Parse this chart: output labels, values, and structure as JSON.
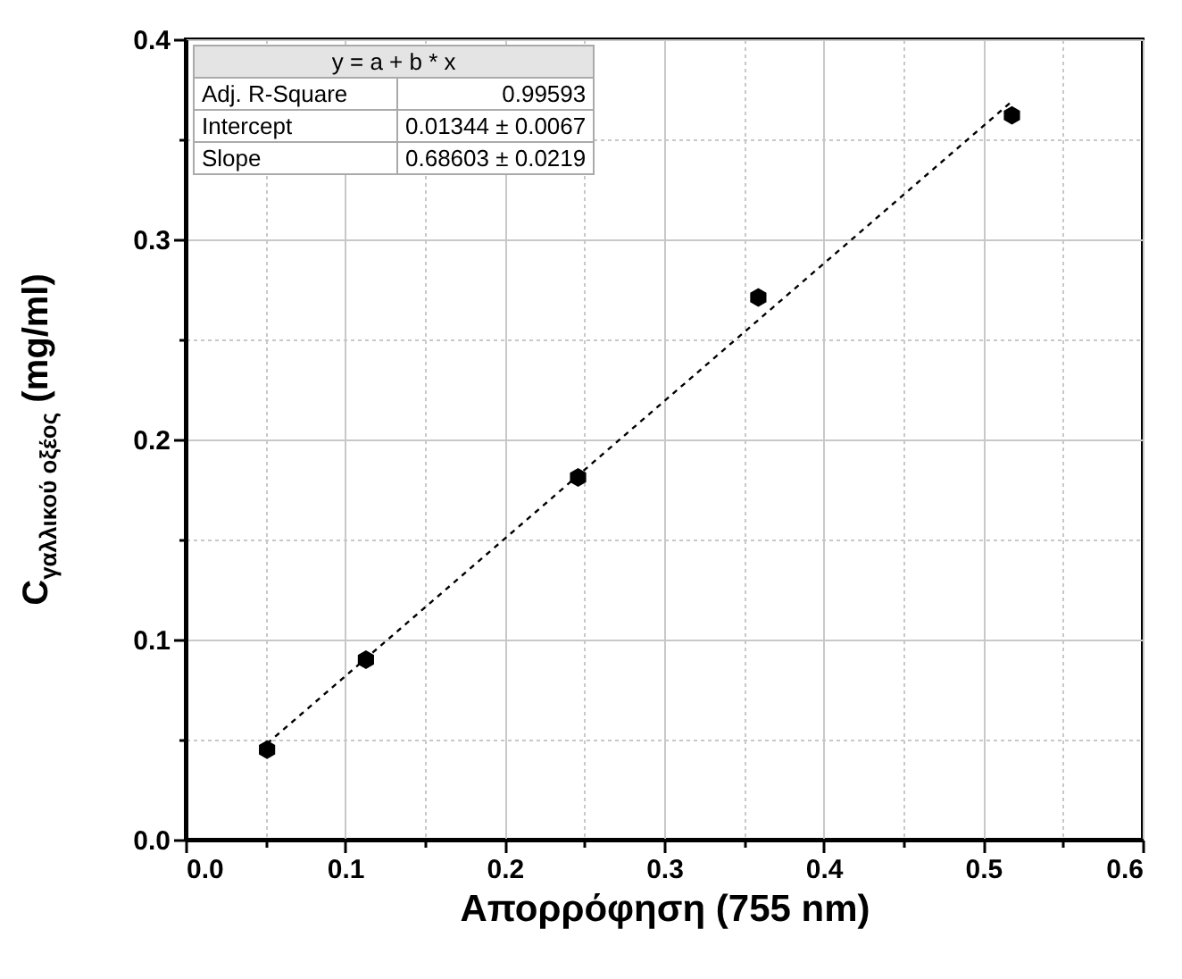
{
  "chart_data": {
    "type": "scatter",
    "xlabel": "Απορρόφηση (755 nm)",
    "ylabel": "C$_{γαλλικού οξέος}$ (mg/ml)",
    "xlim": [
      0,
      0.6
    ],
    "xticks": [
      {
        "value": 0,
        "label": "0.0"
      },
      {
        "value": 0.05,
        "label": null
      },
      0.1,
      {
        "value": 0.15,
        "label": null
      },
      0.2,
      {
        "value": 0.25,
        "label": null
      },
      0.3,
      {
        "value": 0.35,
        "label": null
      },
      0.4,
      {
        "value": 0.45,
        "label": null
      },
      0.5,
      {
        "value": 0.55,
        "label": null
      },
      0.6
    ],
    "ylim": [
      0,
      0.4
    ],
    "yticks": [
      {
        "value": 0,
        "label": "0.0"
      },
      {
        "value": 0.05,
        "label": null
      },
      0.1,
      {
        "value": 0.15,
        "label": null
      },
      0.2,
      {
        "value": 0.25,
        "label": null
      },
      0.3,
      {
        "value": 0.35,
        "label": null
      },
      0.4
    ],
    "grid": true,
    "series": [
      {
        "color": "#000000",
        "x": [
          0.051,
          0.113,
          0.246,
          0.359,
          0.518
        ],
        "values": [
          0.045,
          0.09,
          0.181,
          0.271,
          0.362
        ]
      },
      {
        "type": "line",
        "color": "#000000",
        "line_style": "dashed",
        "marker": "none",
        "x": [
          0.051,
          0.518
        ],
        "values": [
          0.048,
          0.369
        ]
      }
    ],
    "annotations": [
      "y = a + b * x",
      "Adj. R-Square",
      "0.99593",
      "Intercept",
      "0.01344 ± 0.0067",
      "Slope",
      "0.68603 ± 0.0219"
    ]
  }
}
